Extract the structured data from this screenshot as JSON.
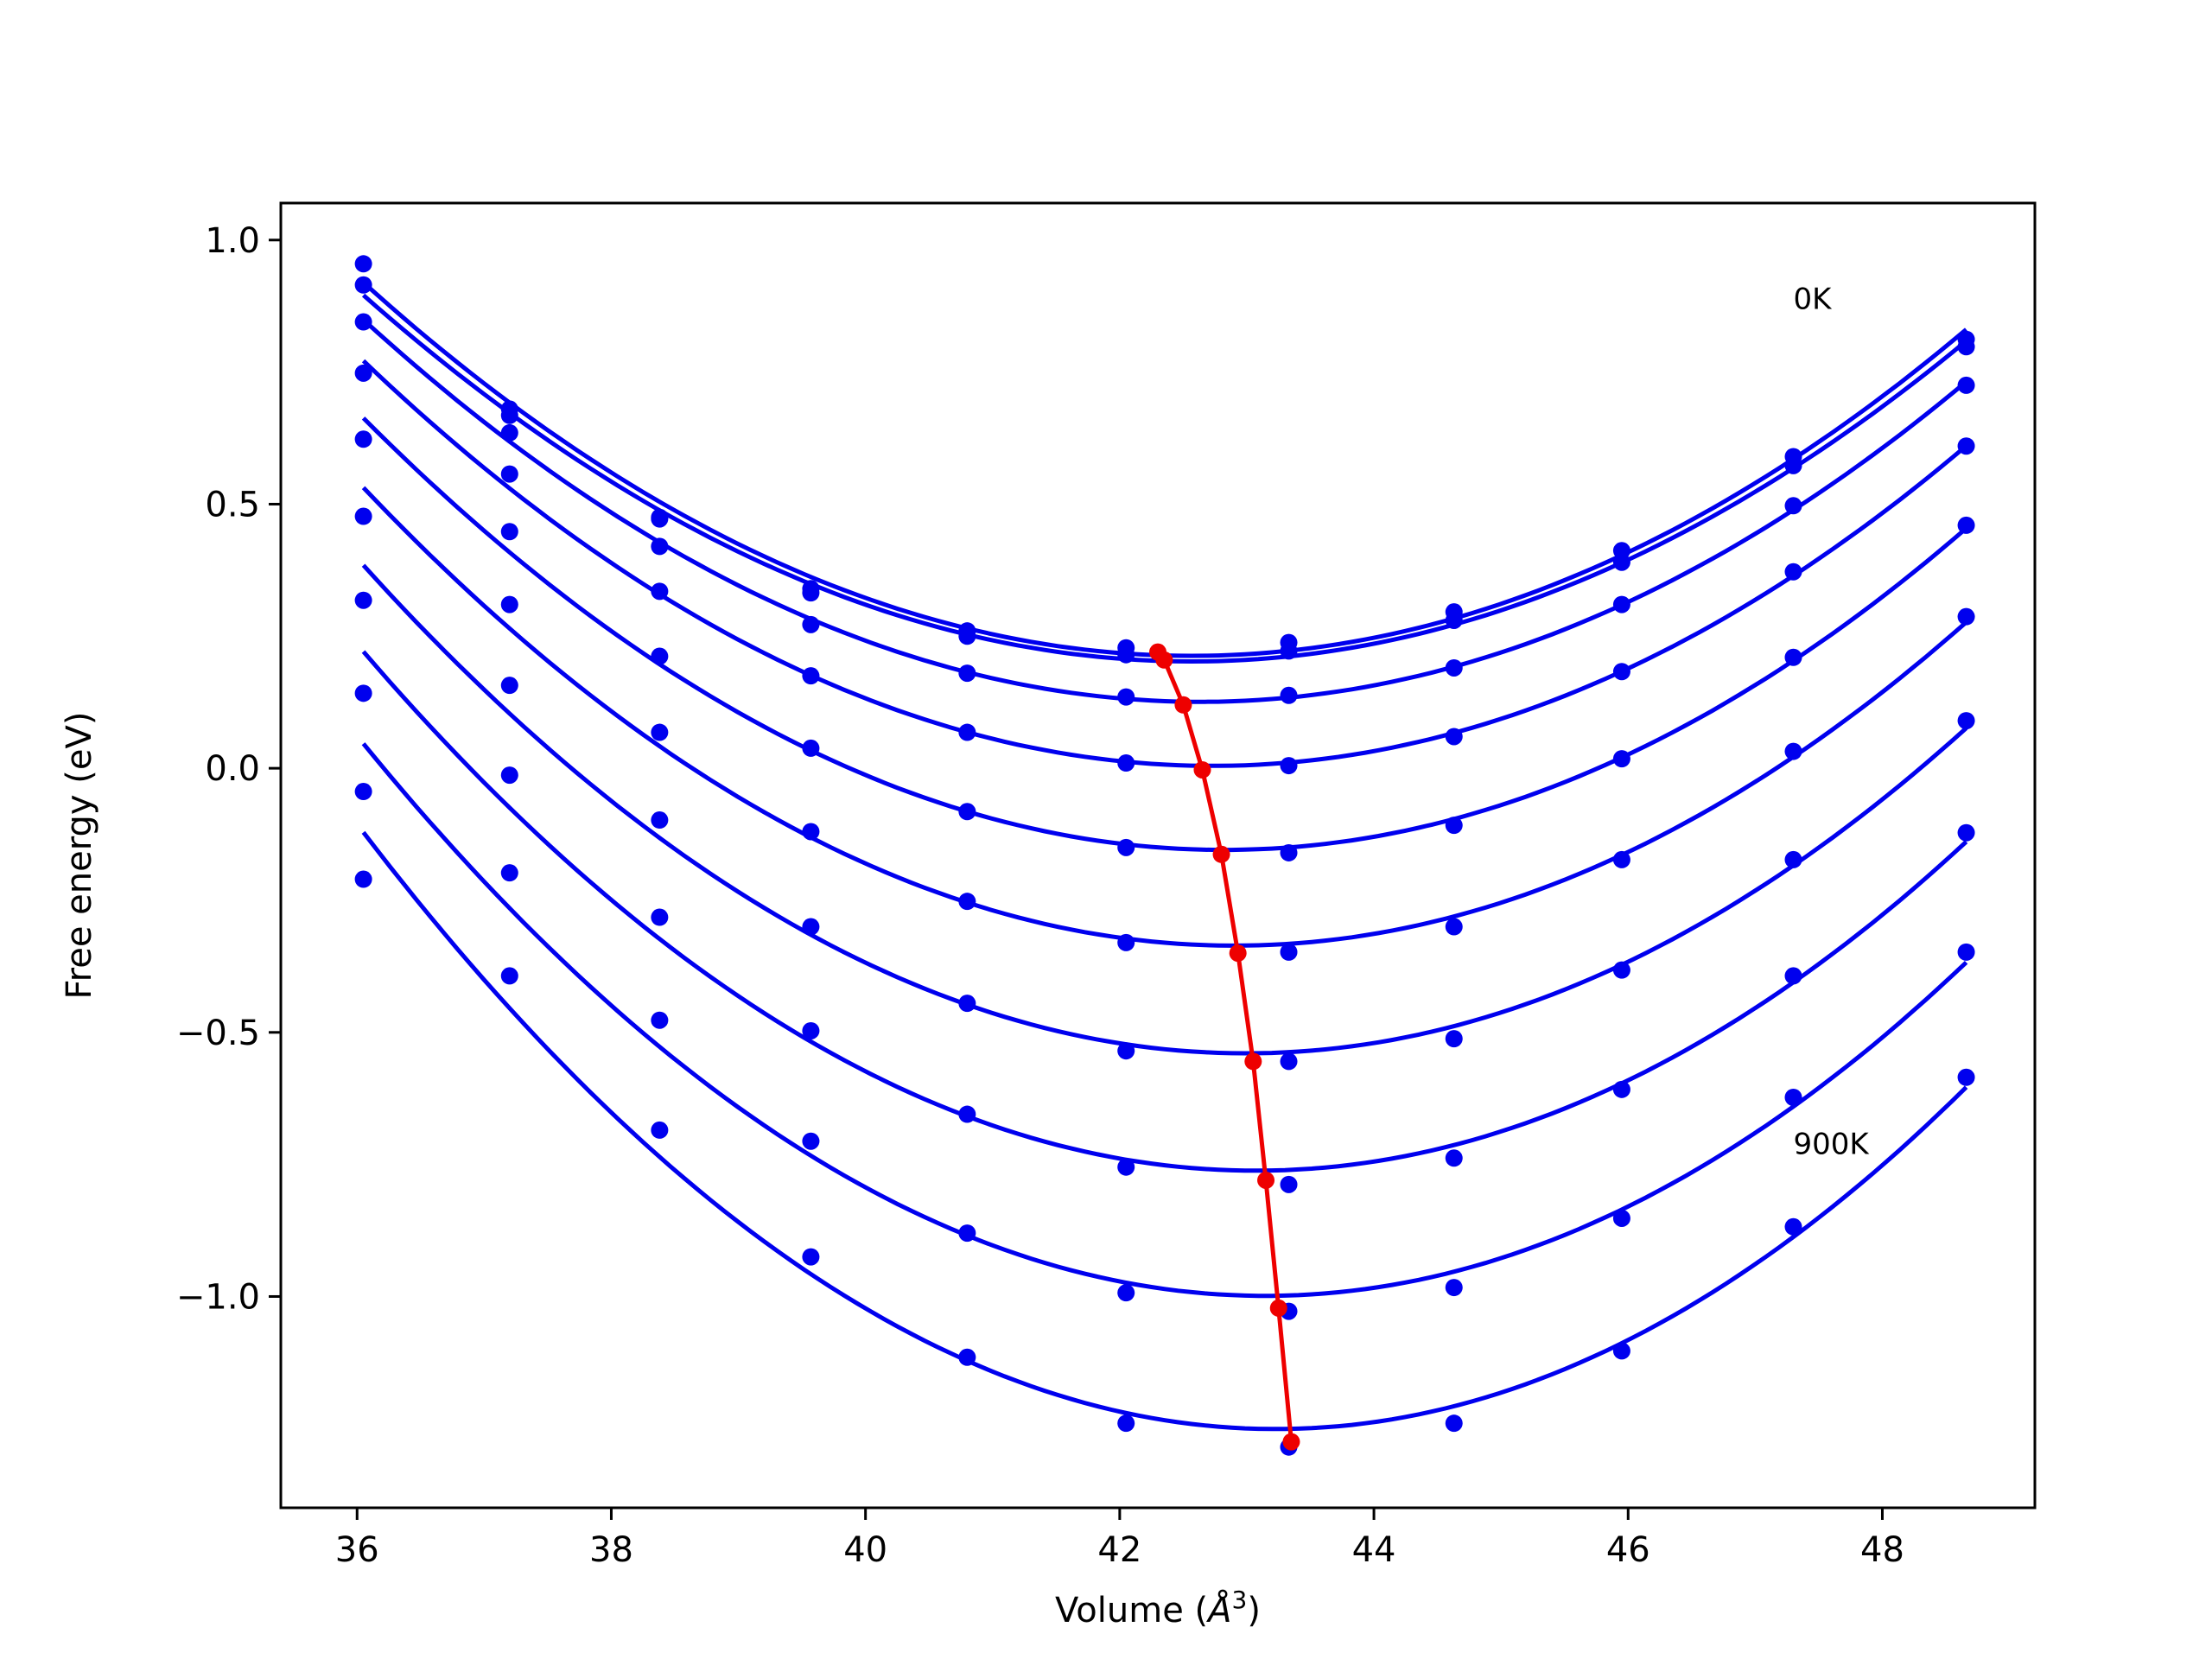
{
  "chart_data": {
    "type": "line",
    "xlabel": "Volume (",
    "xlabel_unit": "Å",
    "xlabel_exp": "3",
    "xlabel_close": ")",
    "ylabel": "Free energy (eV)",
    "xlim": [
      35.4,
      49.2
    ],
    "ylim": [
      -1.4,
      1.07
    ],
    "xticks": [
      36,
      38,
      40,
      42,
      44,
      46,
      48
    ],
    "yticks": [
      1.0,
      0.5,
      0.0,
      -0.5,
      -1.0
    ],
    "ytick_labels": [
      "1.0",
      "0.5",
      "0.0",
      "−0.5",
      "−1.0"
    ],
    "grid": false,
    "x": [
      36.05,
      37.2,
      38.38,
      39.57,
      40.8,
      42.05,
      43.33,
      44.63,
      45.95,
      47.3,
      48.66
    ],
    "series_color": "#0000ee",
    "series": [
      {
        "values": [
          0.955,
          0.68,
          0.475,
          0.34,
          0.26,
          0.228,
          0.238,
          0.296,
          0.412,
          0.59,
          0.812
        ]
      },
      {
        "values": [
          0.915,
          0.668,
          0.472,
          0.332,
          0.25,
          0.215,
          0.222,
          0.28,
          0.39,
          0.573,
          0.798
        ]
      },
      {
        "values": [
          0.845,
          0.635,
          0.42,
          0.272,
          0.18,
          0.135,
          0.138,
          0.19,
          0.31,
          0.497,
          0.725
        ]
      },
      {
        "values": [
          0.748,
          0.557,
          0.335,
          0.175,
          0.068,
          0.01,
          0.005,
          0.06,
          0.183,
          0.372,
          0.61
        ]
      },
      {
        "values": [
          0.623,
          0.448,
          0.212,
          0.038,
          -0.082,
          -0.15,
          -0.16,
          -0.108,
          0.018,
          0.21,
          0.46
        ]
      },
      {
        "values": [
          0.477,
          0.31,
          0.068,
          -0.12,
          -0.252,
          -0.33,
          -0.348,
          -0.3,
          -0.173,
          0.032,
          0.287
        ]
      },
      {
        "values": [
          0.318,
          0.157,
          -0.098,
          -0.3,
          -0.445,
          -0.535,
          -0.555,
          -0.512,
          -0.382,
          -0.173,
          0.09
        ]
      },
      {
        "values": [
          0.142,
          -0.013,
          -0.282,
          -0.497,
          -0.655,
          -0.755,
          -0.788,
          -0.738,
          -0.608,
          -0.393,
          -0.122
        ]
      },
      {
        "values": [
          -0.044,
          -0.198,
          -0.477,
          -0.706,
          -0.88,
          -0.993,
          -1.028,
          -0.983,
          -0.852,
          -0.623,
          -0.348
        ]
      },
      {
        "values": [
          -0.21,
          -0.393,
          -0.685,
          -0.925,
          -1.115,
          -1.24,
          -1.285,
          -1.24,
          -1.103,
          -0.868,
          -0.585
        ]
      }
    ],
    "minima_color": "#ee0000",
    "minima": {
      "x": [
        42.3,
        42.35,
        42.5,
        42.65,
        42.8,
        42.93,
        43.05,
        43.15,
        43.25,
        43.35
      ],
      "y": [
        0.22,
        0.205,
        0.12,
        -0.003,
        -0.163,
        -0.35,
        -0.555,
        -0.78,
        -1.022,
        -1.275
      ]
    },
    "annotations": [
      {
        "text": "0K",
        "x": 47.3,
        "y": 0.87
      },
      {
        "text": "900K",
        "x": 47.3,
        "y": -0.73
      }
    ]
  }
}
